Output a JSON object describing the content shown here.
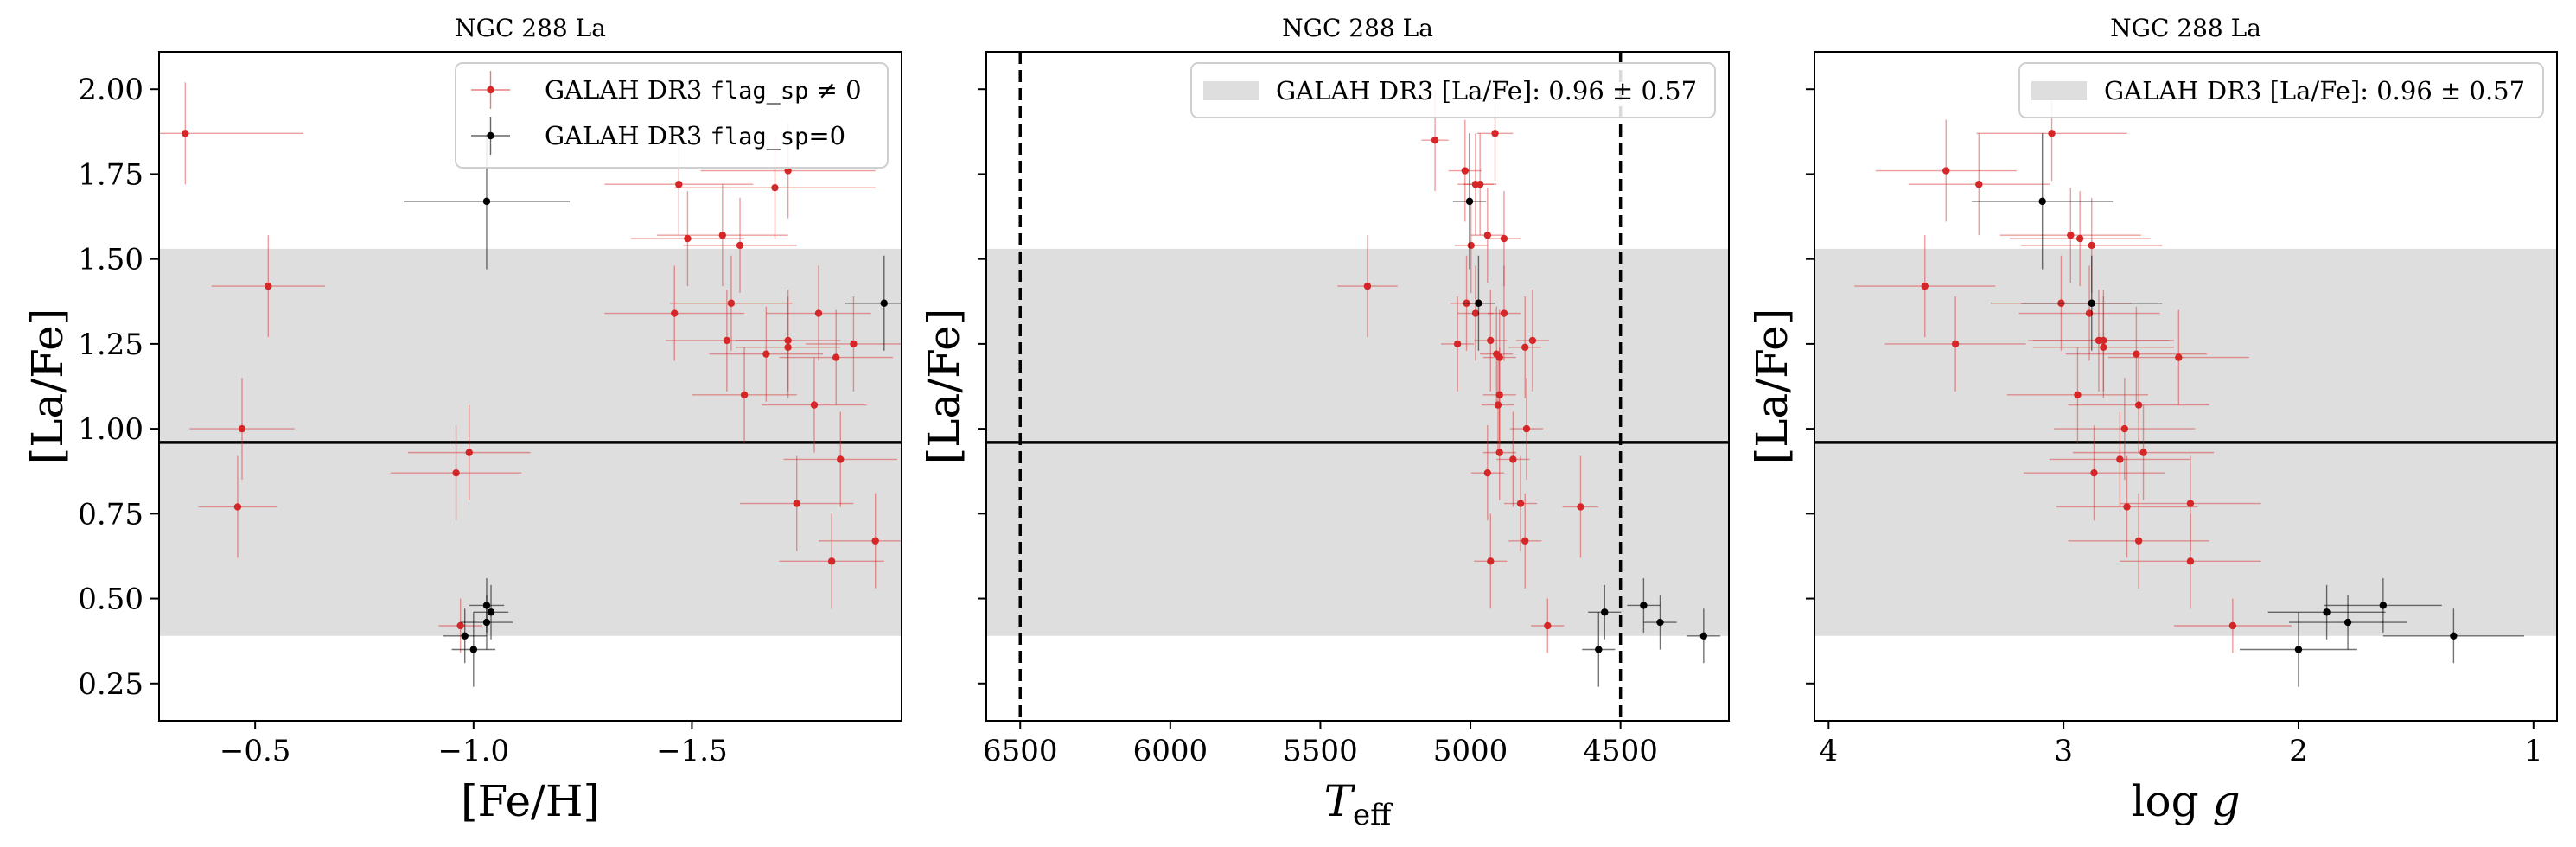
{
  "colors": {
    "flagged": "#d62728",
    "unflagged": "#000000",
    "band": "#dedede",
    "mean_line": "#000000",
    "frame": "#000000"
  },
  "legend": {
    "flagged_label_prefix": "GALAH DR3 ",
    "flagged_label_code": "flag_sp",
    "flagged_label_suffix": " ≠ 0",
    "unflagged_label_prefix": "GALAH DR3 ",
    "unflagged_label_code": "flag_sp",
    "unflagged_label_suffix": "=0",
    "band_label": "GALAH DR3 [La/Fe]: 0.96 ± 0.57"
  },
  "chart_data": [
    {
      "type": "scatter",
      "title": "NGC 288 La",
      "xlabel": "[Fe/H]",
      "ylabel": "[La/Fe]",
      "xlim": [
        -0.28,
        -1.98
      ],
      "ylim": [
        0.14,
        2.11
      ],
      "xticks": [
        -0.5,
        -1.0,
        -1.5
      ],
      "xtick_labels": [
        "−0.5",
        "−1.0",
        "−1.5"
      ],
      "yticks": [
        0.25,
        0.5,
        0.75,
        1.0,
        1.25,
        1.5,
        1.75,
        2.0
      ],
      "ytick_labels": [
        "0.25",
        "0.50",
        "0.75",
        "1.00",
        "1.25",
        "1.50",
        "1.75",
        "2.00"
      ],
      "grid": false,
      "legend_position": "top-right",
      "band": {
        "center": 0.96,
        "half_width": 0.57
      },
      "hline": 0.96,
      "series": [
        {
          "name": "GALAH DR3 flag_sp ≠ 0",
          "flag": 1,
          "points": [
            {
              "x": -0.34,
              "y": 1.87,
              "xerr": 0.27,
              "yerr": 0.15
            },
            {
              "x": -0.53,
              "y": 1.42,
              "xerr": 0.13,
              "yerr": 0.15
            },
            {
              "x": -0.47,
              "y": 1.0,
              "xerr": 0.12,
              "yerr": 0.15
            },
            {
              "x": -0.46,
              "y": 0.77,
              "xerr": 0.09,
              "yerr": 0.15
            },
            {
              "x": -1.72,
              "y": 1.76,
              "xerr": 0.2,
              "yerr": 0.14
            },
            {
              "x": -1.69,
              "y": 1.71,
              "xerr": 0.23,
              "yerr": 0.15
            },
            {
              "x": -1.47,
              "y": 1.72,
              "xerr": 0.17,
              "yerr": 0.15
            },
            {
              "x": -1.57,
              "y": 1.57,
              "xerr": 0.15,
              "yerr": 0.15
            },
            {
              "x": -1.49,
              "y": 1.56,
              "xerr": 0.13,
              "yerr": 0.14
            },
            {
              "x": -1.61,
              "y": 1.54,
              "xerr": 0.13,
              "yerr": 0.14
            },
            {
              "x": -1.59,
              "y": 1.37,
              "xerr": 0.14,
              "yerr": 0.14
            },
            {
              "x": -1.46,
              "y": 1.34,
              "xerr": 0.16,
              "yerr": 0.14
            },
            {
              "x": -1.79,
              "y": 1.34,
              "xerr": 0.12,
              "yerr": 0.14
            },
            {
              "x": -1.72,
              "y": 1.26,
              "xerr": 0.12,
              "yerr": 0.15
            },
            {
              "x": -1.58,
              "y": 1.26,
              "xerr": 0.14,
              "yerr": 0.15
            },
            {
              "x": -1.87,
              "y": 1.25,
              "xerr": 0.11,
              "yerr": 0.14
            },
            {
              "x": -1.72,
              "y": 1.24,
              "xerr": 0.12,
              "yerr": 0.15
            },
            {
              "x": -1.83,
              "y": 1.21,
              "xerr": 0.13,
              "yerr": 0.14
            },
            {
              "x": -1.67,
              "y": 1.22,
              "xerr": 0.13,
              "yerr": 0.14
            },
            {
              "x": -1.62,
              "y": 1.1,
              "xerr": 0.12,
              "yerr": 0.14
            },
            {
              "x": -1.78,
              "y": 1.07,
              "xerr": 0.12,
              "yerr": 0.14
            },
            {
              "x": -0.99,
              "y": 0.93,
              "xerr": 0.14,
              "yerr": 0.14
            },
            {
              "x": -0.96,
              "y": 0.87,
              "xerr": 0.15,
              "yerr": 0.14
            },
            {
              "x": -1.84,
              "y": 0.91,
              "xerr": 0.13,
              "yerr": 0.14
            },
            {
              "x": -1.74,
              "y": 0.78,
              "xerr": 0.13,
              "yerr": 0.14
            },
            {
              "x": -1.92,
              "y": 0.67,
              "xerr": 0.13,
              "yerr": 0.14
            },
            {
              "x": -1.82,
              "y": 0.61,
              "xerr": 0.12,
              "yerr": 0.14
            },
            {
              "x": -0.97,
              "y": 0.42,
              "xerr": 0.05,
              "yerr": 0.08
            }
          ]
        },
        {
          "name": "GALAH DR3 flag_sp=0",
          "flag": 0,
          "points": [
            {
              "x": -1.03,
              "y": 1.67,
              "xerr": 0.19,
              "yerr": 0.2
            },
            {
              "x": -1.94,
              "y": 1.37,
              "xerr": 0.09,
              "yerr": 0.14
            },
            {
              "x": -1.03,
              "y": 0.48,
              "xerr": 0.04,
              "yerr": 0.08
            },
            {
              "x": -1.04,
              "y": 0.46,
              "xerr": 0.04,
              "yerr": 0.08
            },
            {
              "x": -1.03,
              "y": 0.43,
              "xerr": 0.06,
              "yerr": 0.08
            },
            {
              "x": -0.98,
              "y": 0.39,
              "xerr": 0.05,
              "yerr": 0.08
            },
            {
              "x": -1.0,
              "y": 0.35,
              "xerr": 0.05,
              "yerr": 0.11
            }
          ]
        }
      ]
    },
    {
      "type": "scatter",
      "title": "NGC 288 La",
      "xlabel": "T_eff",
      "ylabel": "[La/Fe]",
      "xlim": [
        6613,
        4139
      ],
      "ylim": [
        0.14,
        2.11
      ],
      "xticks": [
        6500,
        6000,
        5500,
        5000,
        4500
      ],
      "xtick_labels": [
        "6500",
        "6000",
        "5500",
        "5000",
        "4500"
      ],
      "yticks": [
        0.25,
        0.5,
        0.75,
        1.0,
        1.25,
        1.5,
        1.75,
        2.0
      ],
      "ytick_labels": [],
      "grid": false,
      "legend_position": "top-right",
      "band": {
        "center": 0.96,
        "half_width": 0.57
      },
      "hline": 0.96,
      "vlines": [
        6500,
        4500
      ],
      "series": [
        {
          "name": "GALAH DR3 flag_sp ≠ 0",
          "flag": 1,
          "points": [
            {
              "x": 5118,
              "y": 1.85,
              "xerr": 45,
              "yerr": 0.15
            },
            {
              "x": 4918,
              "y": 1.87,
              "xerr": 60,
              "yerr": 0.14
            },
            {
              "x": 5018,
              "y": 1.76,
              "xerr": 55,
              "yerr": 0.15
            },
            {
              "x": 4983,
              "y": 1.72,
              "xerr": 60,
              "yerr": 0.15
            },
            {
              "x": 4968,
              "y": 1.72,
              "xerr": 55,
              "yerr": 0.15
            },
            {
              "x": 4943,
              "y": 1.57,
              "xerr": 55,
              "yerr": 0.14
            },
            {
              "x": 4888,
              "y": 1.56,
              "xerr": 55,
              "yerr": 0.14
            },
            {
              "x": 4998,
              "y": 1.54,
              "xerr": 55,
              "yerr": 0.14
            },
            {
              "x": 5343,
              "y": 1.42,
              "xerr": 100,
              "yerr": 0.15
            },
            {
              "x": 5013,
              "y": 1.37,
              "xerr": 55,
              "yerr": 0.14
            },
            {
              "x": 4983,
              "y": 1.34,
              "xerr": 60,
              "yerr": 0.14
            },
            {
              "x": 4888,
              "y": 1.34,
              "xerr": 55,
              "yerr": 0.14
            },
            {
              "x": 4793,
              "y": 1.26,
              "xerr": 55,
              "yerr": 0.15
            },
            {
              "x": 4933,
              "y": 1.26,
              "xerr": 55,
              "yerr": 0.15
            },
            {
              "x": 5043,
              "y": 1.25,
              "xerr": 55,
              "yerr": 0.14
            },
            {
              "x": 4818,
              "y": 1.24,
              "xerr": 55,
              "yerr": 0.15
            },
            {
              "x": 4913,
              "y": 1.22,
              "xerr": 55,
              "yerr": 0.14
            },
            {
              "x": 4903,
              "y": 1.21,
              "xerr": 55,
              "yerr": 0.14
            },
            {
              "x": 4903,
              "y": 1.1,
              "xerr": 55,
              "yerr": 0.14
            },
            {
              "x": 4908,
              "y": 1.07,
              "xerr": 55,
              "yerr": 0.14
            },
            {
              "x": 4813,
              "y": 1.0,
              "xerr": 55,
              "yerr": 0.15
            },
            {
              "x": 4903,
              "y": 0.93,
              "xerr": 55,
              "yerr": 0.14
            },
            {
              "x": 4858,
              "y": 0.91,
              "xerr": 55,
              "yerr": 0.14
            },
            {
              "x": 4943,
              "y": 0.87,
              "xerr": 55,
              "yerr": 0.14
            },
            {
              "x": 4833,
              "y": 0.78,
              "xerr": 55,
              "yerr": 0.14
            },
            {
              "x": 4633,
              "y": 0.77,
              "xerr": 60,
              "yerr": 0.15
            },
            {
              "x": 4818,
              "y": 0.67,
              "xerr": 55,
              "yerr": 0.14
            },
            {
              "x": 4933,
              "y": 0.61,
              "xerr": 55,
              "yerr": 0.14
            },
            {
              "x": 4743,
              "y": 0.42,
              "xerr": 55,
              "yerr": 0.08
            }
          ]
        },
        {
          "name": "GALAH DR3 flag_sp=0",
          "flag": 0,
          "points": [
            {
              "x": 5003,
              "y": 1.67,
              "xerr": 55,
              "yerr": 0.2
            },
            {
              "x": 4973,
              "y": 1.37,
              "xerr": 55,
              "yerr": 0.14
            },
            {
              "x": 4423,
              "y": 0.48,
              "xerr": 55,
              "yerr": 0.08
            },
            {
              "x": 4553,
              "y": 0.46,
              "xerr": 55,
              "yerr": 0.08
            },
            {
              "x": 4368,
              "y": 0.43,
              "xerr": 55,
              "yerr": 0.08
            },
            {
              "x": 4223,
              "y": 0.39,
              "xerr": 55,
              "yerr": 0.08
            },
            {
              "x": 4573,
              "y": 0.35,
              "xerr": 55,
              "yerr": 0.11
            }
          ]
        }
      ]
    },
    {
      "type": "scatter",
      "title": "NGC 288 La",
      "xlabel": "log g",
      "ylabel": "[La/Fe]",
      "xlim": [
        4.06,
        0.9
      ],
      "ylim": [
        0.14,
        2.11
      ],
      "xticks": [
        4,
        3,
        2,
        1
      ],
      "xtick_labels": [
        "4",
        "3",
        "2",
        "1"
      ],
      "yticks": [
        0.25,
        0.5,
        0.75,
        1.0,
        1.25,
        1.5,
        1.75,
        2.0
      ],
      "ytick_labels": [],
      "grid": false,
      "legend_position": "top-right",
      "band": {
        "center": 0.96,
        "half_width": 0.57
      },
      "hline": 0.96,
      "series": [
        {
          "name": "GALAH DR3 flag_sp ≠ 0",
          "flag": 1,
          "points": [
            {
              "x": 3.05,
              "y": 1.87,
              "xerr": 0.32,
              "yerr": 0.14
            },
            {
              "x": 3.5,
              "y": 1.76,
              "xerr": 0.3,
              "yerr": 0.15
            },
            {
              "x": 3.36,
              "y": 1.72,
              "xerr": 0.3,
              "yerr": 0.15
            },
            {
              "x": 2.97,
              "y": 1.57,
              "xerr": 0.3,
              "yerr": 0.14
            },
            {
              "x": 2.93,
              "y": 1.56,
              "xerr": 0.3,
              "yerr": 0.14
            },
            {
              "x": 2.88,
              "y": 1.54,
              "xerr": 0.3,
              "yerr": 0.14
            },
            {
              "x": 3.59,
              "y": 1.42,
              "xerr": 0.3,
              "yerr": 0.15
            },
            {
              "x": 3.01,
              "y": 1.37,
              "xerr": 0.3,
              "yerr": 0.14
            },
            {
              "x": 2.89,
              "y": 1.34,
              "xerr": 0.3,
              "yerr": 0.14
            },
            {
              "x": 2.85,
              "y": 1.26,
              "xerr": 0.3,
              "yerr": 0.15
            },
            {
              "x": 2.83,
              "y": 1.26,
              "xerr": 0.3,
              "yerr": 0.15
            },
            {
              "x": 3.46,
              "y": 1.25,
              "xerr": 0.3,
              "yerr": 0.14
            },
            {
              "x": 2.83,
              "y": 1.24,
              "xerr": 0.3,
              "yerr": 0.15
            },
            {
              "x": 2.69,
              "y": 1.22,
              "xerr": 0.3,
              "yerr": 0.14
            },
            {
              "x": 2.51,
              "y": 1.21,
              "xerr": 0.3,
              "yerr": 0.14
            },
            {
              "x": 2.94,
              "y": 1.1,
              "xerr": 0.3,
              "yerr": 0.14
            },
            {
              "x": 2.68,
              "y": 1.07,
              "xerr": 0.3,
              "yerr": 0.14
            },
            {
              "x": 2.74,
              "y": 1.0,
              "xerr": 0.3,
              "yerr": 0.15
            },
            {
              "x": 2.66,
              "y": 0.93,
              "xerr": 0.3,
              "yerr": 0.14
            },
            {
              "x": 2.76,
              "y": 0.91,
              "xerr": 0.3,
              "yerr": 0.14
            },
            {
              "x": 2.87,
              "y": 0.87,
              "xerr": 0.3,
              "yerr": 0.14
            },
            {
              "x": 2.46,
              "y": 0.78,
              "xerr": 0.3,
              "yerr": 0.14
            },
            {
              "x": 2.73,
              "y": 0.77,
              "xerr": 0.3,
              "yerr": 0.15
            },
            {
              "x": 2.68,
              "y": 0.67,
              "xerr": 0.3,
              "yerr": 0.14
            },
            {
              "x": 2.46,
              "y": 0.61,
              "xerr": 0.3,
              "yerr": 0.14
            },
            {
              "x": 2.28,
              "y": 0.42,
              "xerr": 0.25,
              "yerr": 0.08
            }
          ]
        },
        {
          "name": "GALAH DR3 flag_sp=0",
          "flag": 0,
          "points": [
            {
              "x": 3.09,
              "y": 1.67,
              "xerr": 0.3,
              "yerr": 0.2
            },
            {
              "x": 2.88,
              "y": 1.37,
              "xerr": 0.3,
              "yerr": 0.14
            },
            {
              "x": 1.64,
              "y": 0.48,
              "xerr": 0.25,
              "yerr": 0.08
            },
            {
              "x": 1.88,
              "y": 0.46,
              "xerr": 0.25,
              "yerr": 0.08
            },
            {
              "x": 1.79,
              "y": 0.43,
              "xerr": 0.25,
              "yerr": 0.08
            },
            {
              "x": 1.34,
              "y": 0.39,
              "xerr": 0.3,
              "yerr": 0.08
            },
            {
              "x": 2.0,
              "y": 0.35,
              "xerr": 0.25,
              "yerr": 0.11
            }
          ]
        }
      ]
    }
  ]
}
